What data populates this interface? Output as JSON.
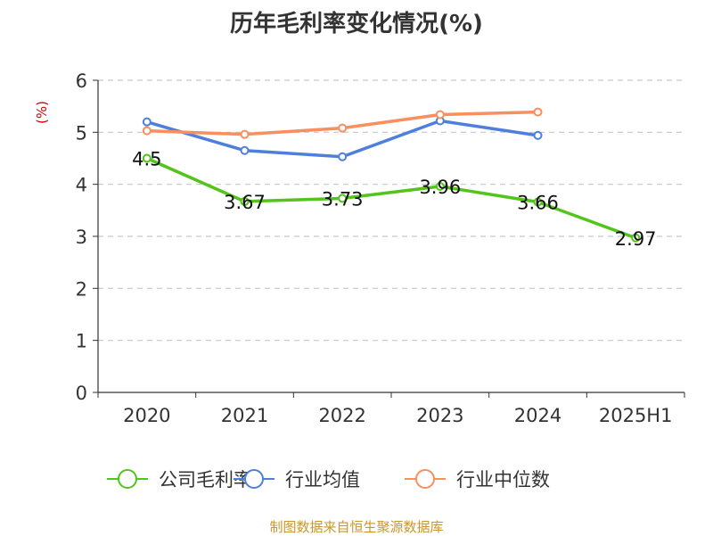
{
  "source_text": "制图数据来自恒生聚源数据库",
  "source_color": "#c9962b",
  "chart_data": {
    "type": "line",
    "title": "历年毛利率变化情况(%)",
    "ylabel": "(%)",
    "ylabel_color": "#cc0000",
    "categories": [
      "2020",
      "2021",
      "2022",
      "2023",
      "2024",
      "2025H1"
    ],
    "ylim": [
      0,
      6
    ],
    "yticks": [
      "0",
      "1",
      "2",
      "3",
      "4",
      "5",
      "6"
    ],
    "grid": true,
    "legend_position": "bottom",
    "series": [
      {
        "name": "公司毛利率",
        "color": "#52c41a",
        "values": [
          4.5,
          3.67,
          3.73,
          3.96,
          3.66,
          2.97
        ],
        "labels": [
          "4.5",
          "3.67",
          "3.73",
          "3.96",
          "3.66",
          "2.97"
        ]
      },
      {
        "name": "行业均值",
        "color": "#4f7fdc",
        "values": [
          5.2,
          4.65,
          4.53,
          5.22,
          4.94,
          null
        ]
      },
      {
        "name": "行业中位数",
        "color": "#f98e5e",
        "values": [
          5.03,
          4.96,
          5.08,
          5.34,
          5.39,
          null
        ]
      }
    ]
  }
}
